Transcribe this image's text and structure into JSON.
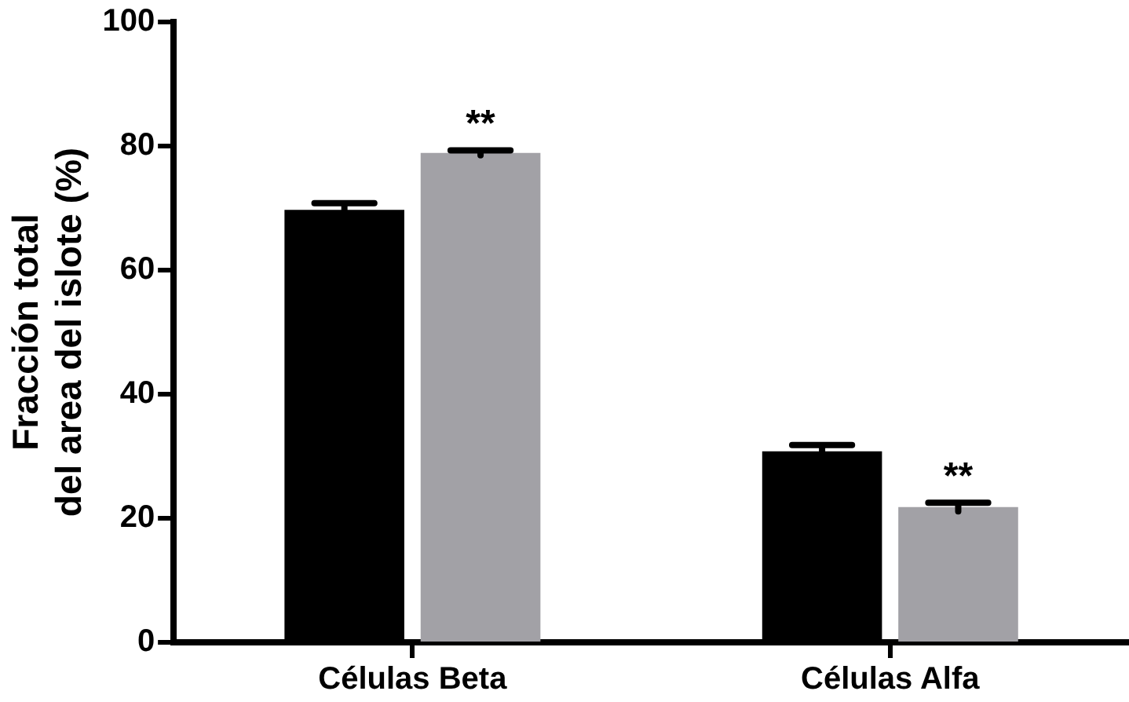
{
  "chart_data": {
    "type": "bar",
    "ylabel": "Fracción total\ndel area del islote (%)",
    "categories": [
      "Células Beta",
      "Células Alfa"
    ],
    "series": [
      {
        "color": "#000000",
        "values": [
          69.7,
          30.8
        ],
        "errors": [
          1.1,
          1.0
        ]
      },
      {
        "color": "#a2a1a6",
        "values": [
          78.9,
          21.8
        ],
        "errors": [
          0.4,
          0.7
        ]
      }
    ],
    "ylim": [
      0,
      100
    ],
    "yticks": [
      0,
      20,
      40,
      60,
      80,
      100
    ],
    "grid": false,
    "legend": false,
    "annotations": [
      "**",
      "**"
    ]
  }
}
